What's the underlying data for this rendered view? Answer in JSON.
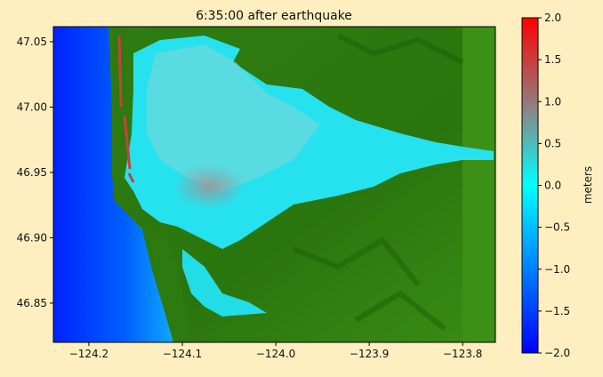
{
  "figure": {
    "title": "6:35:00 after earthquake",
    "background": "#ffeebf"
  },
  "map": {
    "x_range": [
      -124.238,
      -123.765
    ],
    "y_range": [
      46.82,
      47.0615
    ],
    "x_ticks": [
      -124.2,
      -124.1,
      -124.0,
      -123.9,
      -123.8
    ],
    "x_tick_labels": [
      "−124.2",
      "−124.1",
      "−124.0",
      "−123.9",
      "−123.8"
    ],
    "y_ticks": [
      46.85,
      46.9,
      46.95,
      47.0,
      47.05
    ],
    "y_tick_labels": [
      "46.85",
      "46.90",
      "46.95",
      "47.00",
      "47.05"
    ],
    "colors": {
      "land": "#2f7f10",
      "land_dark": "#1f6408",
      "ocean_deep": "#0022ff",
      "ocean_near": "#0099ff",
      "bay": "#22e6ee",
      "bay_elevated": "#8a9a9a",
      "high": "#ff0000"
    }
  },
  "colorbar": {
    "label": "meters",
    "range": [
      -2.0,
      2.0
    ],
    "ticks": [
      2.0,
      1.5,
      1.0,
      0.5,
      0.0,
      -0.5,
      -1.0,
      -1.5,
      -2.0
    ],
    "tick_labels": [
      "2.0",
      "1.5",
      "1.0",
      "0.5",
      "0.0",
      "−0.5",
      "−1.0",
      "−1.5",
      "−2.0"
    ],
    "colormap": [
      "#0000ff",
      "#00ffff",
      "#888888",
      "#ff0000"
    ]
  }
}
